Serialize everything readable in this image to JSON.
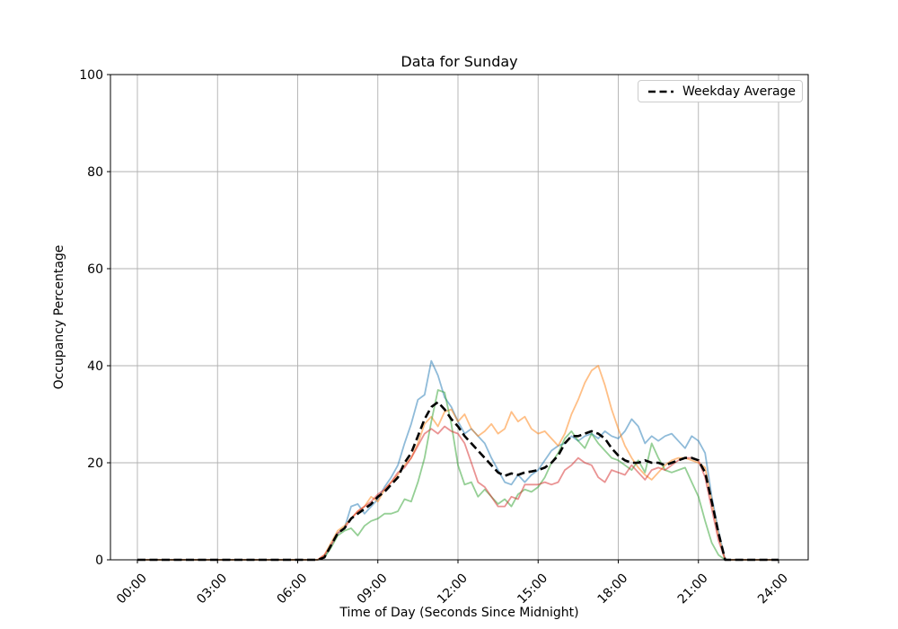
{
  "figure": {
    "title": "Data for Sunday",
    "x_axis_label": "Time of Day (Seconds Since Midnight)",
    "y_axis_label": "Occupancy Percentage",
    "legend": {
      "label": "Weekday Average"
    },
    "background_color": "#ffffff",
    "grid_color": "#b0b0b0",
    "spine_color": "#000000"
  },
  "chart_data": {
    "type": "line",
    "title": "Data for Sunday",
    "xlabel": "Time of Day (Seconds Since Midnight)",
    "ylabel": "Occupancy Percentage",
    "x_tick_labels": [
      "00:00",
      "03:00",
      "06:00",
      "09:00",
      "12:00",
      "15:00",
      "18:00",
      "21:00",
      "24:00"
    ],
    "x_tick_hours": [
      0,
      3,
      6,
      9,
      12,
      15,
      18,
      21,
      24
    ],
    "y_ticks": [
      0,
      20,
      40,
      60,
      80,
      100
    ],
    "ylim": [
      0,
      100
    ],
    "xlim_hours": [
      -1.05,
      25.05
    ],
    "grid": true,
    "legend_position": "upper right",
    "legend_entries": [
      {
        "label": "Weekday Average",
        "color": "#000000",
        "style": "dashed"
      }
    ],
    "x_start_hour": 0,
    "x_step_hours": 0.25,
    "series": [
      {
        "name": "sunday-line-blue",
        "color": "#1f77b4",
        "opacity": 0.5,
        "width": 1.8,
        "dashed": false,
        "values": [
          0,
          0,
          0,
          0,
          0,
          0,
          0,
          0,
          0,
          0,
          0,
          0,
          0,
          0,
          0,
          0,
          0,
          0,
          0,
          0,
          0,
          0,
          0,
          0,
          0,
          0,
          0,
          0,
          0.5,
          3,
          5.5,
          6.5,
          11,
          11.5,
          9.5,
          11,
          12.5,
          15,
          17,
          19.5,
          24,
          28,
          33,
          34,
          41,
          38,
          33.5,
          31.5,
          28.5,
          26,
          27,
          25.5,
          24,
          21,
          18.5,
          16,
          15.5,
          17.5,
          16,
          17.5,
          18.5,
          20.5,
          22.5,
          23.5,
          24,
          25.5,
          24.5,
          25.5,
          26,
          25,
          26.5,
          25.5,
          25,
          26.5,
          29,
          27.5,
          24,
          25.5,
          24.5,
          25.5,
          26,
          24.5,
          23,
          25.5,
          24.5,
          22,
          13,
          6,
          0,
          0,
          0,
          0,
          0,
          0,
          0,
          0,
          0
        ]
      },
      {
        "name": "sunday-line-orange",
        "color": "#ff7f0e",
        "opacity": 0.5,
        "width": 1.8,
        "dashed": false,
        "values": [
          0,
          0,
          0,
          0,
          0,
          0,
          0,
          0,
          0,
          0,
          0,
          0,
          0,
          0,
          0,
          0,
          0,
          0,
          0,
          0,
          0,
          0,
          0,
          0,
          0,
          0,
          0,
          0,
          1,
          3.5,
          6,
          7,
          8.5,
          10,
          11,
          13,
          12,
          14.5,
          16,
          17.5,
          19.5,
          21,
          24,
          28,
          29.5,
          27.5,
          30.5,
          31,
          28.5,
          30,
          27,
          25.5,
          26.5,
          28,
          26,
          27,
          30.5,
          28.5,
          29.5,
          27,
          26,
          26.5,
          25,
          23.5,
          26,
          30,
          33,
          36.5,
          39,
          40,
          36,
          31,
          27,
          23.5,
          21,
          19,
          17.5,
          16.5,
          18,
          19.5,
          20.5,
          21,
          21,
          20.5,
          20,
          19,
          12,
          5,
          0,
          0,
          0,
          0,
          0,
          0,
          0,
          0,
          0
        ]
      },
      {
        "name": "sunday-line-green",
        "color": "#2ca02c",
        "opacity": 0.5,
        "width": 1.8,
        "dashed": false,
        "values": [
          0,
          0,
          0,
          0,
          0,
          0,
          0,
          0,
          0,
          0,
          0,
          0,
          0,
          0,
          0,
          0,
          0,
          0,
          0,
          0,
          0,
          0,
          0,
          0,
          0,
          0,
          0,
          0,
          0.5,
          2.5,
          5,
          6,
          6.5,
          5,
          7,
          8,
          8.5,
          9.5,
          9.5,
          10,
          12.5,
          12,
          16,
          21,
          28.5,
          35,
          34.5,
          28,
          19.5,
          15.5,
          16,
          13,
          14.5,
          13,
          11.5,
          12.5,
          11,
          13.5,
          14.5,
          14,
          15,
          17,
          20,
          22,
          25,
          26.5,
          24.5,
          23,
          26,
          24,
          22.5,
          21,
          20.5,
          19.5,
          18.5,
          20.5,
          18,
          24,
          21,
          18.5,
          18,
          18.5,
          19,
          16,
          13,
          8,
          3.5,
          1,
          0,
          0,
          0,
          0,
          0,
          0,
          0,
          0,
          0
        ]
      },
      {
        "name": "sunday-line-red",
        "color": "#d62728",
        "opacity": 0.5,
        "width": 1.8,
        "dashed": false,
        "values": [
          0,
          0,
          0,
          0,
          0,
          0,
          0,
          0,
          0,
          0,
          0,
          0,
          0,
          0,
          0,
          0,
          0,
          0,
          0,
          0,
          0,
          0,
          0,
          0,
          0,
          0,
          0,
          0,
          1,
          3,
          5.5,
          6.5,
          8.5,
          10,
          11,
          12,
          13.5,
          14.5,
          16,
          18,
          19,
          21,
          23.5,
          26,
          27,
          26,
          27.5,
          26.5,
          26,
          24,
          20,
          16,
          15,
          13,
          11,
          11,
          13,
          12.5,
          15.5,
          15.5,
          15.5,
          16,
          15.5,
          16,
          18.5,
          19.5,
          21,
          20,
          19.5,
          17,
          16,
          18.5,
          18,
          17.5,
          19.5,
          18,
          16.5,
          18.5,
          19,
          18.5,
          19.5,
          20.5,
          21,
          21,
          20.5,
          17,
          10.5,
          4,
          0,
          0,
          0,
          0,
          0,
          0,
          0,
          0,
          0
        ]
      },
      {
        "name": "Weekday Average",
        "color": "#000000",
        "opacity": 1,
        "width": 2.6,
        "dashed": true,
        "values": [
          0,
          0,
          0,
          0,
          0,
          0,
          0,
          0,
          0,
          0,
          0,
          0,
          0,
          0,
          0,
          0,
          0,
          0,
          0,
          0,
          0,
          0,
          0,
          0,
          0,
          0,
          0,
          0,
          0.5,
          3,
          5.5,
          6.5,
          8.5,
          9.5,
          10.5,
          11.5,
          13,
          14,
          15.5,
          17,
          20,
          22,
          25.5,
          29,
          31.5,
          32.5,
          31,
          29,
          27.5,
          25.5,
          24,
          22.5,
          21,
          19.5,
          18,
          17.3,
          17.8,
          17.5,
          18,
          18.2,
          18.5,
          19,
          20,
          21.5,
          24,
          25.5,
          25.5,
          26,
          26.5,
          26,
          25,
          23,
          21.5,
          20.5,
          20,
          20,
          20.5,
          20,
          20,
          19.5,
          20,
          20.5,
          21,
          21,
          20.5,
          18,
          12,
          5.5,
          0,
          0,
          0,
          0,
          0,
          0,
          0,
          0,
          0
        ]
      }
    ]
  }
}
